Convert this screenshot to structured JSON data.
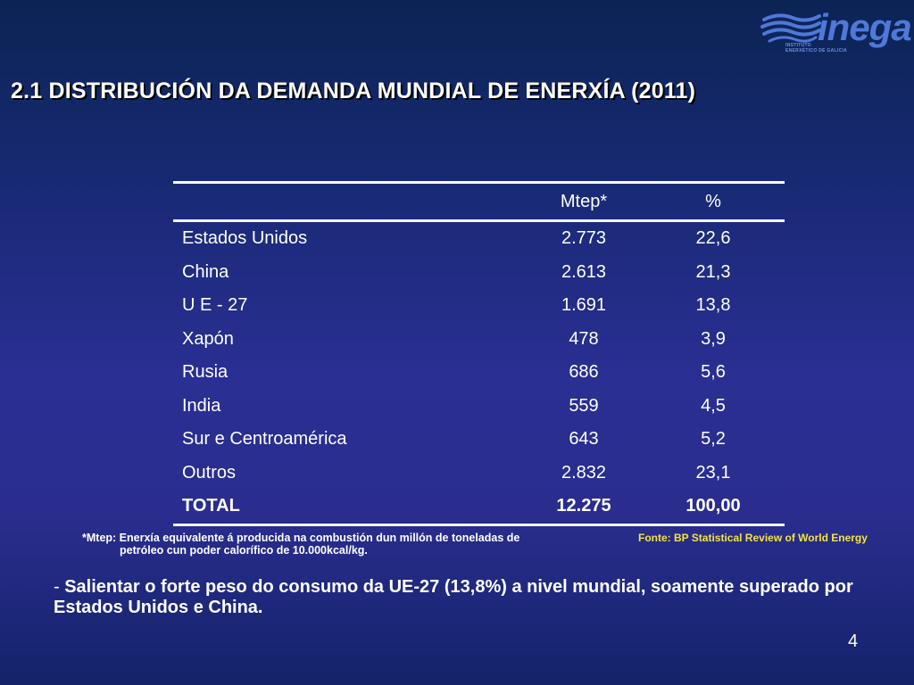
{
  "logo": {
    "word": "inega",
    "subtitle_line1": "INSTITUTO",
    "subtitle_line2": "ENERXÉTICO DE GALICIA",
    "color": "#4f78d8"
  },
  "title": "2.1 DISTRIBUCIÓN DA DEMANDA MUNDIAL DE  ENERXÍA (2011)",
  "table": {
    "headers": {
      "name": "",
      "mtep": "Mtep*",
      "pct": "%"
    },
    "rows": [
      {
        "name": "Estados Unidos",
        "mtep": "2.773",
        "pct": "22,6"
      },
      {
        "name": "China",
        "mtep": "2.613",
        "pct": "21,3"
      },
      {
        "name": "U E - 27",
        "mtep": "1.691",
        "pct": "13,8"
      },
      {
        "name": "Xapón",
        "mtep": "478",
        "pct": "3,9"
      },
      {
        "name": "Rusia",
        "mtep": "686",
        "pct": "5,6"
      },
      {
        "name": "India",
        "mtep": "559",
        "pct": "4,5"
      },
      {
        "name": "Sur e Centroamérica",
        "mtep": "643",
        "pct": "5,2"
      },
      {
        "name": "Outros",
        "mtep": "2.832",
        "pct": "23,1"
      }
    ],
    "total": {
      "name": "TOTAL",
      "mtep": "12.275",
      "pct": "100,00"
    }
  },
  "footnote": {
    "line1": "*Mtep: Enerxía equivalente á producida na combustión dun millón de toneladas de",
    "line2": "petróleo cun poder calorífico de 10.000kcal/kg."
  },
  "source": "Fonte: BP Statistical Review of World Energy",
  "bullet": {
    "dash": "- ",
    "text": "Salientar o forte peso do consumo da UE-27 (13,8%) a nivel mundial, soamente superado por Estados Unidos e China."
  },
  "page_number": "4",
  "colors": {
    "background_top": "#0b2454",
    "background_mid": "#2a2f93",
    "source_text": "#f3e341",
    "text": "#ffffff"
  }
}
